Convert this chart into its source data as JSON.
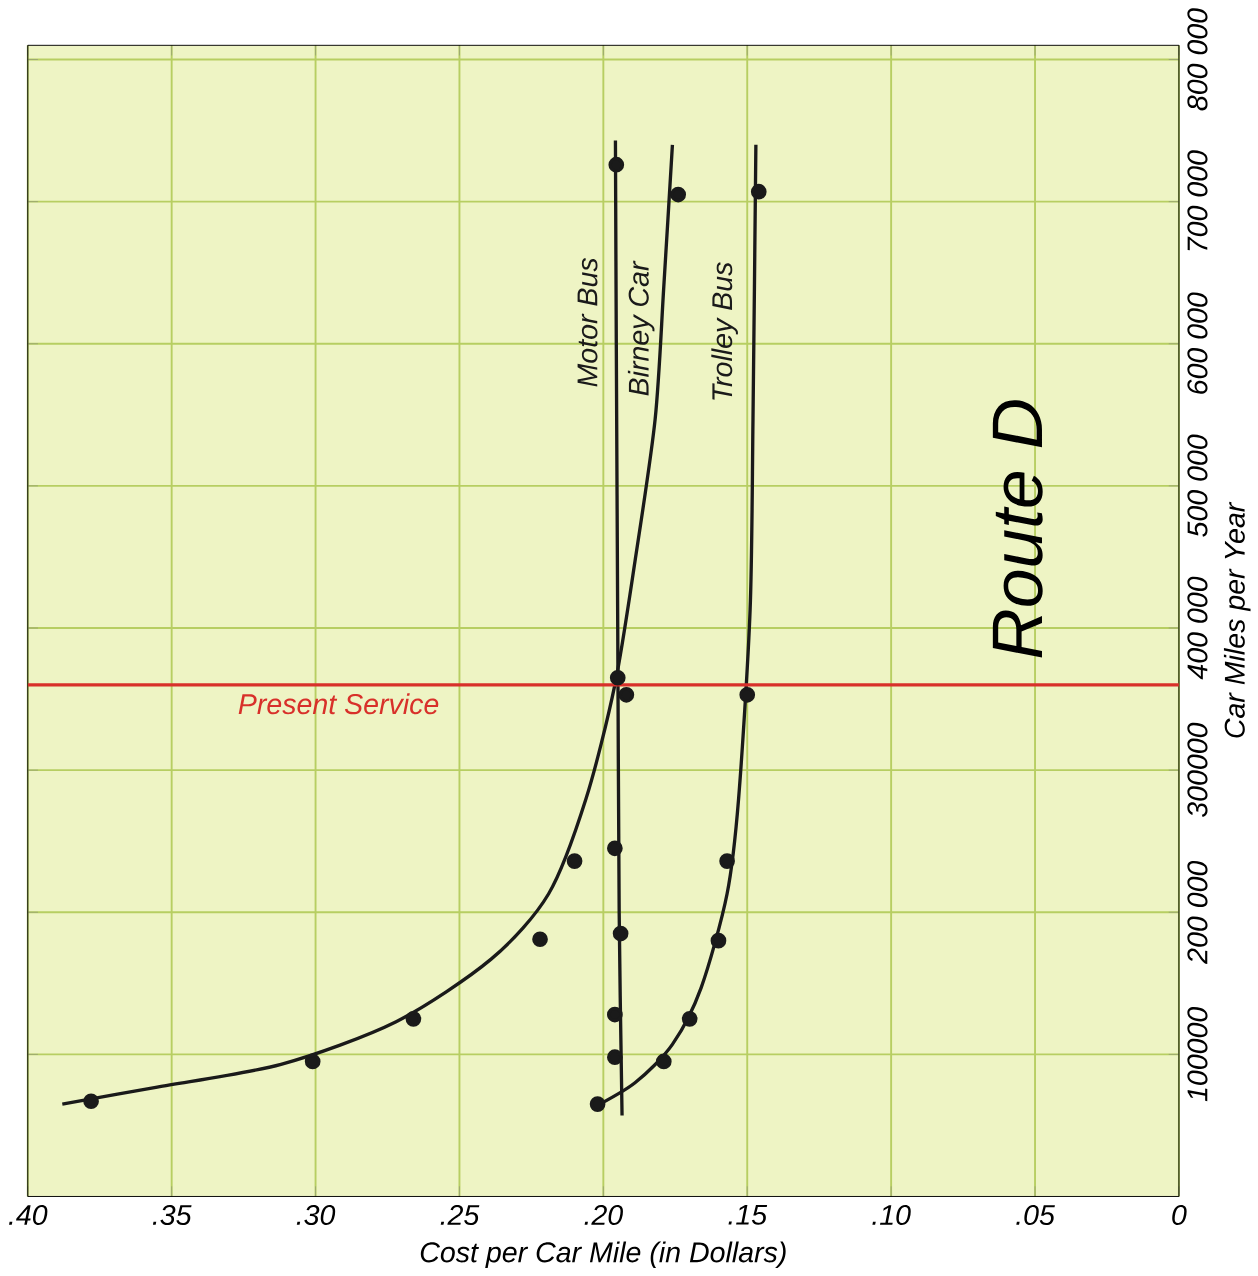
{
  "chart_data": {
    "type": "line",
    "xlabel": "Cost per Car Mile (in Dollars)",
    "ylabel": "Car Miles per Year",
    "xlim": [
      0.4,
      0
    ],
    "ylim": [
      0,
      810000
    ],
    "xticks": [
      {
        "value": 0.4,
        "label": ".40"
      },
      {
        "value": 0.35,
        "label": ".35"
      },
      {
        "value": 0.3,
        "label": ".30"
      },
      {
        "value": 0.25,
        "label": ".25"
      },
      {
        "value": 0.2,
        "label": ".20"
      },
      {
        "value": 0.15,
        "label": ".15"
      },
      {
        "value": 0.1,
        "label": ".10"
      },
      {
        "value": 0.05,
        "label": ".05"
      },
      0
    ],
    "yticks": [
      100000,
      {
        "value": 200000,
        "label": "200 000"
      },
      300000,
      {
        "value": 400000,
        "label": "400 000"
      },
      {
        "value": 500000,
        "label": "500 000"
      },
      {
        "value": 600000,
        "label": "600 000"
      },
      {
        "value": 700000,
        "label": "700 000"
      },
      {
        "value": 800000,
        "label": "800 000"
      }
    ],
    "grid": true,
    "annotations": [
      "Route D"
    ],
    "ref_lines": [
      {
        "axis": "y",
        "value": 360000,
        "label": "Present Service",
        "color": "#d8302a"
      }
    ],
    "series": [
      {
        "name": "Motor Bus",
        "color": "#1a1a1a",
        "marker": "none",
        "x": [
          0.1935,
          0.1945,
          0.195,
          0.1955,
          0.1958
        ],
        "values": [
          57000,
          200000,
          400000,
          600000,
          743000
        ]
      },
      {
        "name": "Birney Car",
        "color": "#1a1a1a",
        "marker": "none",
        "x": [
          0.388,
          0.355,
          0.312,
          0.272,
          0.239,
          0.219,
          0.206,
          0.196,
          0.189,
          0.182,
          0.179,
          0.176
        ],
        "values": [
          65000,
          77000,
          93000,
          123000,
          167000,
          213000,
          280000,
          360000,
          447000,
          547000,
          640000,
          740000
        ]
      },
      {
        "name": "Trolley Bus",
        "color": "#1a1a1a",
        "marker": "none",
        "x": [
          0.204,
          0.189,
          0.176,
          0.166,
          0.157,
          0.153,
          0.149,
          0.148,
          0.147
        ],
        "values": [
          62000,
          80000,
          107000,
          147000,
          213000,
          280000,
          413000,
          547000,
          740000
        ]
      },
      {
        "type": "scatter",
        "color": "#1a1a1a",
        "marker": "circle",
        "x": [
          0.196,
          0.196,
          0.194,
          0.196,
          0.195,
          0.1955
        ],
        "values": [
          98000,
          128000,
          185000,
          245000,
          365000,
          726000
        ]
      },
      {
        "type": "scatter",
        "color": "#1a1a1a",
        "marker": "circle",
        "x": [
          0.378,
          0.301,
          0.266,
          0.222,
          0.21,
          0.192,
          0.174
        ],
        "values": [
          67000,
          95000,
          125000,
          181000,
          236000,
          353000,
          705000
        ]
      },
      {
        "type": "scatter",
        "color": "#1a1a1a",
        "marker": "circle",
        "x": [
          0.202,
          0.179,
          0.17,
          0.16,
          0.157,
          0.15,
          0.146
        ],
        "values": [
          65000,
          95000,
          125000,
          180000,
          236000,
          353000,
          707000
        ]
      }
    ]
  }
}
